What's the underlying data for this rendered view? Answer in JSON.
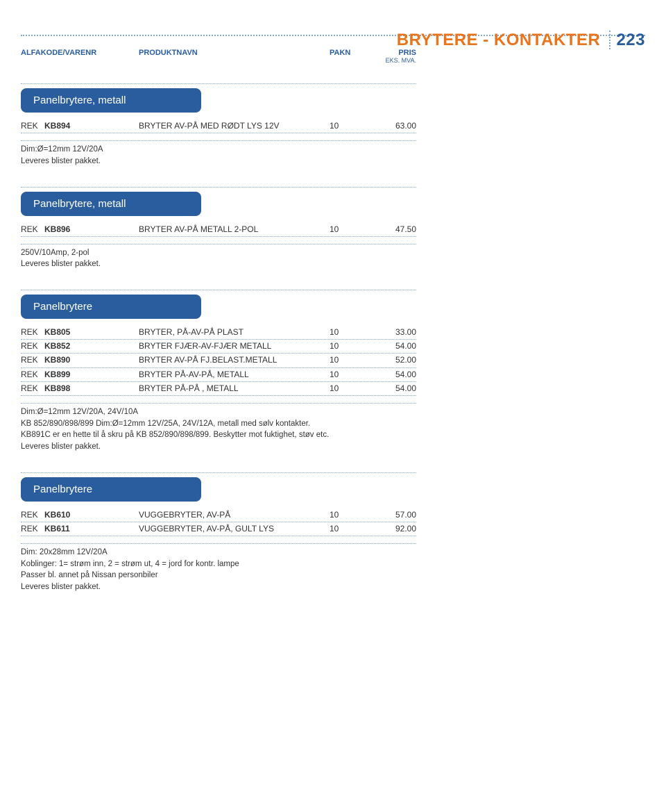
{
  "page": {
    "title_orange": "BRYTERE - KONTAKTER",
    "title_blue": "223",
    "header_dot_color": "#7fa8d4",
    "orange": "#e8741c",
    "blue": "#2a5d9e"
  },
  "table_header": {
    "col1": "ALFAKODE/VARENR",
    "col2": "PRODUKTNAVN",
    "col3": "PAKN",
    "col4": "PRIS",
    "col4_sub": "EKS. MVA."
  },
  "sections": [
    {
      "title": "Panelbrytere, metall",
      "rows": [
        {
          "pfx": "REK",
          "sku": "KB894",
          "name": "BRYTER AV-PÅ MED RØDT LYS 12V",
          "pack": "10",
          "price": "63.00"
        }
      ],
      "desc": "Dim:Ø=12mm   12V/20A\nLeveres blister pakket.",
      "image": "toggle-red"
    },
    {
      "title": "Panelbrytere, metall",
      "rows": [
        {
          "pfx": "REK",
          "sku": "KB896",
          "name": "BRYTER AV-PÅ METALL 2-POL",
          "pack": "10",
          "price": "47.50"
        }
      ],
      "desc": "250V/10Amp, 2-pol\nLeveres blister pakket.",
      "image": "toggle-off"
    },
    {
      "title": "Panelbrytere",
      "rows": [
        {
          "pfx": "REK",
          "sku": "KB805",
          "name": "BRYTER, PÅ-AV-PÅ PLAST",
          "pack": "10",
          "price": "33.00"
        },
        {
          "pfx": "REK",
          "sku": "KB852",
          "name": "BRYTER FJÆR-AV-FJÆR METALL",
          "pack": "10",
          "price": "54.00"
        },
        {
          "pfx": "REK",
          "sku": "KB890",
          "name": "BRYTER AV-PÅ FJ.BELAST.METALL",
          "pack": "10",
          "price": "52.00"
        },
        {
          "pfx": "REK",
          "sku": "KB899",
          "name": "BRYTER PÅ-AV-PÅ, METALL",
          "pack": "10",
          "price": "54.00"
        },
        {
          "pfx": "REK",
          "sku": "KB898",
          "name": "BRYTER PÅ-PÅ , METALL",
          "pack": "10",
          "price": "54.00"
        }
      ],
      "desc": "Dim:Ø=12mm   12V/20A, 24V/10A\nKB 852/890/898/899 Dim:Ø=12mm   12V/25A, 24V/12A,  metall med sølv kontakter.\nKB891C er en hette til å  skru på KB 852/890/898/899. Beskytter mot fuktighet, støv etc.\nLeveres blister pakket.",
      "image": "toggle-simple"
    },
    {
      "title": "Panelbrytere",
      "rows": [
        {
          "pfx": "REK",
          "sku": "KB610",
          "name": "VUGGEBRYTER, AV-PÅ",
          "pack": "10",
          "price": "57.00"
        },
        {
          "pfx": "REK",
          "sku": "KB611",
          "name": "VUGGEBRYTER, AV-PÅ, GULT LYS",
          "pack": "10",
          "price": "92.00"
        }
      ],
      "desc": "Dim: 20x28mm  12V/20A\nKoblinger: 1= strøm inn, 2 = strøm ut, 4 = jord for kontr. lampe\nPasser bl. annet på Nissan personbiler\nLeveres blister pakket.",
      "image": "rocker"
    }
  ]
}
